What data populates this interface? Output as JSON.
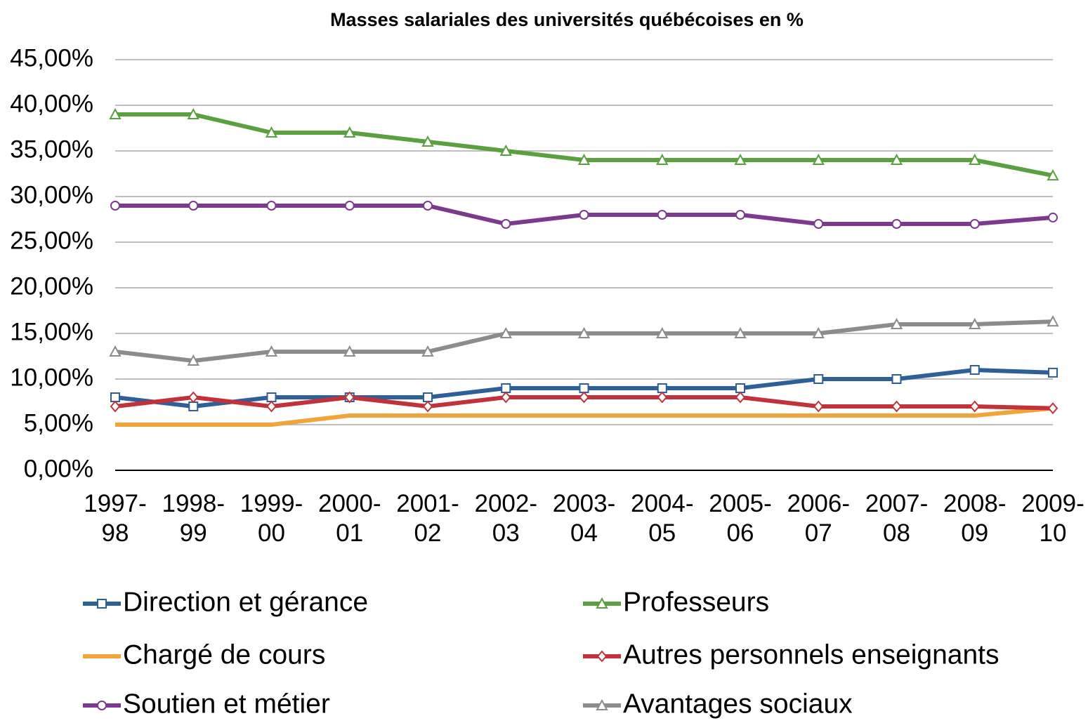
{
  "chart_data": {
    "type": "line",
    "title": "Masses salariales des universités québécoises en %",
    "categories": [
      "1997-98",
      "1998-99",
      "1999-00",
      "2000-01",
      "2001-02",
      "2002-03",
      "2003-04",
      "2004-05",
      "2005-06",
      "2006-07",
      "2007-08",
      "2008-09",
      "2009-10"
    ],
    "ylim": [
      0,
      45
    ],
    "yticks": [
      {
        "value": 0,
        "label": "0,00%"
      },
      {
        "value": 5,
        "label": "5,00%"
      },
      {
        "value": 10,
        "label": "10,00%"
      },
      {
        "value": 15,
        "label": "15,00%"
      },
      {
        "value": 20,
        "label": "20,00%"
      },
      {
        "value": 25,
        "label": "25,00%"
      },
      {
        "value": 30,
        "label": "30,00%"
      },
      {
        "value": 35,
        "label": "35,00%"
      },
      {
        "value": 40,
        "label": "40,00%"
      },
      {
        "value": 45,
        "label": "45,00%"
      }
    ],
    "grid": true,
    "legend": "bottom",
    "series": [
      {
        "name": "Direction et gérance",
        "color": "#2f5f98",
        "marker": "square",
        "values": [
          8,
          7,
          8,
          8,
          8,
          9,
          9,
          9,
          9,
          10,
          10,
          11,
          10.7
        ]
      },
      {
        "name": "Professeurs",
        "color": "#5aa041",
        "marker": "triangle",
        "values": [
          39,
          39,
          37,
          37,
          36,
          35,
          34,
          34,
          34,
          34,
          34,
          34,
          32.3
        ]
      },
      {
        "name": "Chargé de cours",
        "color": "#f0a43a",
        "marker": "none",
        "values": [
          5,
          5,
          5,
          6,
          6,
          6,
          6,
          6,
          6,
          6,
          6,
          6,
          6.8
        ]
      },
      {
        "name": "Autres personnels enseignants",
        "color": "#c2323a",
        "marker": "diamond",
        "values": [
          7,
          8,
          7,
          8,
          7,
          8,
          8,
          8,
          8,
          7,
          7,
          7,
          6.8
        ]
      },
      {
        "name": "Soutien et métier",
        "color": "#7b3a8e",
        "marker": "circle",
        "values": [
          29,
          29,
          29,
          29,
          29,
          27,
          28,
          28,
          28,
          27,
          27,
          27,
          27.7
        ]
      },
      {
        "name": "Avantages sociaux",
        "color": "#8c8c8c",
        "marker": "triangle",
        "values": [
          13,
          12,
          13,
          13,
          13,
          15,
          15,
          15,
          15,
          15,
          16,
          16,
          16.3
        ]
      }
    ]
  }
}
